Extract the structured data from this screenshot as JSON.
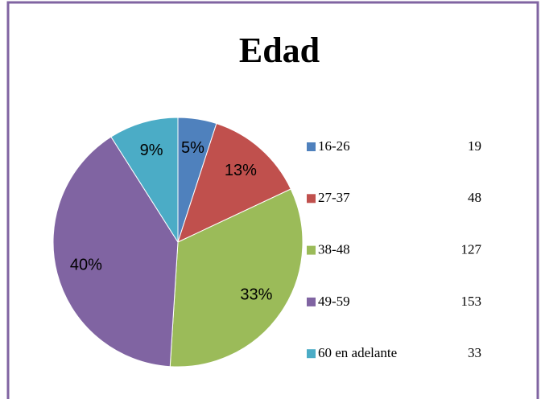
{
  "chart_data": {
    "type": "pie",
    "title": "Edad",
    "categories": [
      "16-26",
      "27-37",
      "38-48",
      "49-59",
      "60 en adelante"
    ],
    "values": [
      5,
      13,
      33,
      40,
      9
    ],
    "value_labels": [
      "5%",
      "13%",
      "33%",
      "40%",
      "9%"
    ],
    "counts": [
      19,
      48,
      127,
      153,
      33
    ],
    "colors": [
      "#4f81bd",
      "#c0504d",
      "#9bbb59",
      "#8064a2",
      "#4bacc6"
    ],
    "legend": "right"
  }
}
